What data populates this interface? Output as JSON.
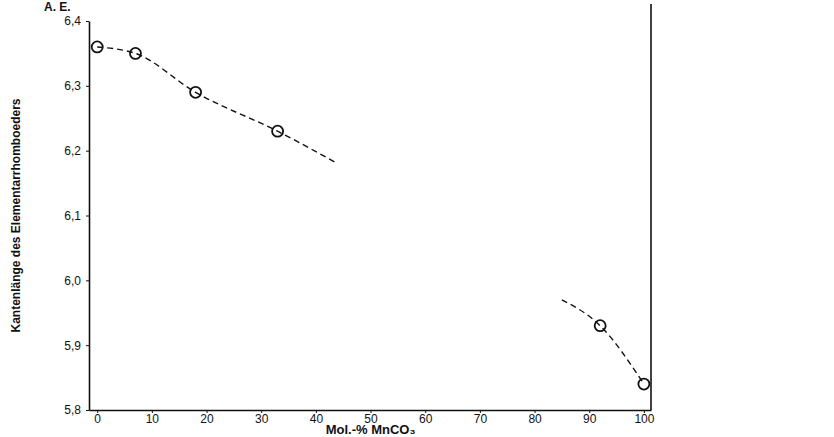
{
  "chart_data": {
    "type": "scatter",
    "x_label": "Mol.-% MnCO₃",
    "y_label": "Kantenlänge des Elementarrhomboeders",
    "annotations": [
      "A. E."
    ],
    "color": "#111111",
    "xlim": [
      -1.5,
      101.3
    ],
    "xticks": [
      0,
      10,
      20,
      30,
      40,
      50,
      60,
      70,
      80,
      90,
      100
    ],
    "ylim": [
      5.8,
      6.4
    ],
    "yticks": [
      {
        "value": 5.8,
        "label": "5,8"
      },
      {
        "value": 5.9,
        "label": "5,9"
      },
      {
        "value": 6.0,
        "label": "6,0"
      },
      {
        "value": 6.1,
        "label": "6,1"
      },
      {
        "value": 6.2,
        "label": "6,2"
      },
      {
        "value": 6.3,
        "label": "6,3"
      },
      {
        "value": 6.4,
        "label": "6,4"
      }
    ],
    "grid": false,
    "series": [
      {
        "type": "scatter",
        "marker": "circle",
        "x": [
          0,
          7,
          18,
          33,
          92,
          100
        ],
        "values": [
          6.36,
          6.35,
          6.29,
          6.23,
          5.93,
          5.84
        ]
      },
      {
        "type": "line",
        "line_style": "dashed",
        "x": [
          0,
          7,
          18,
          33,
          44
        ],
        "values": [
          6.36,
          6.35,
          6.29,
          6.23,
          6.18
        ]
      },
      {
        "type": "line",
        "line_style": "dashed",
        "x": [
          85,
          92,
          100
        ],
        "values": [
          5.97,
          5.93,
          5.84
        ]
      }
    ]
  }
}
